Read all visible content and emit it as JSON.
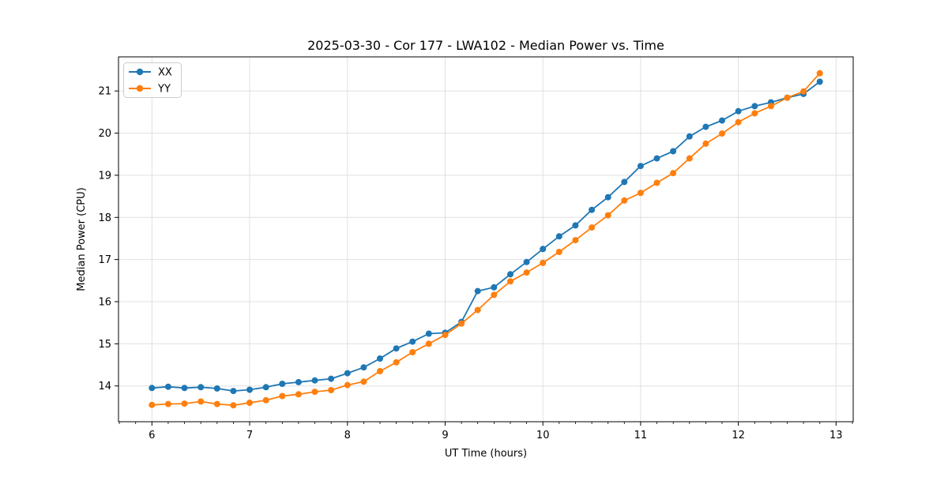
{
  "chart_data": {
    "type": "line",
    "title": "2025-03-30 - Cor 177 - LWA102 - Median Power vs. Time",
    "xlabel": "UT Time (hours)",
    "ylabel": "Median Power (CPU)",
    "x": [
      6.0,
      6.1667,
      6.3333,
      6.5,
      6.6667,
      6.8333,
      7.0,
      7.1667,
      7.3333,
      7.5,
      7.6667,
      7.8333,
      8.0,
      8.1667,
      8.3333,
      8.5,
      8.6667,
      8.8333,
      9.0,
      9.1667,
      9.3333,
      9.5,
      9.6667,
      9.8333,
      10.0,
      10.1667,
      10.3333,
      10.5,
      10.6667,
      10.8333,
      11.0,
      11.1667,
      11.3333,
      11.5,
      11.6667,
      11.8333,
      12.0,
      12.1667,
      12.3333,
      12.5,
      12.6667,
      12.8333
    ],
    "series": [
      {
        "name": "XX",
        "color": "#1f77b4",
        "values": [
          13.95,
          13.98,
          13.95,
          13.97,
          13.94,
          13.88,
          13.91,
          13.97,
          14.05,
          14.09,
          14.13,
          14.17,
          14.3,
          14.44,
          14.65,
          14.89,
          15.05,
          15.24,
          15.26,
          15.52,
          16.25,
          16.34,
          16.65,
          16.94,
          17.25,
          17.55,
          17.81,
          18.18,
          18.48,
          18.84,
          19.22,
          19.4,
          19.57,
          19.92,
          20.15,
          20.3,
          20.52,
          20.64,
          20.73,
          20.84,
          20.93,
          21.22
        ]
      },
      {
        "name": "YY",
        "color": "#ff7f0e",
        "values": [
          13.55,
          13.57,
          13.58,
          13.63,
          13.57,
          13.54,
          13.6,
          13.66,
          13.76,
          13.8,
          13.86,
          13.9,
          14.02,
          14.1,
          14.35,
          14.56,
          14.8,
          15.0,
          15.21,
          15.48,
          15.8,
          16.16,
          16.48,
          16.69,
          16.92,
          17.18,
          17.46,
          17.76,
          18.05,
          18.4,
          18.58,
          18.82,
          19.05,
          19.4,
          19.75,
          19.99,
          20.26,
          20.47,
          20.64,
          20.84,
          20.99,
          21.42
        ]
      }
    ],
    "xticks": [
      6,
      7,
      8,
      9,
      10,
      11,
      12,
      13
    ],
    "yticks": [
      14,
      15,
      16,
      17,
      18,
      19,
      20,
      21
    ],
    "minor_xtick_step": 0.16667,
    "xlim": [
      5.658,
      13.175
    ],
    "ylim": [
      13.15,
      21.81
    ],
    "grid": true,
    "legend_position": "upper-left",
    "grid_color": "#e0e0e0",
    "spine_color": "#000000",
    "background_color": "#ffffff"
  }
}
